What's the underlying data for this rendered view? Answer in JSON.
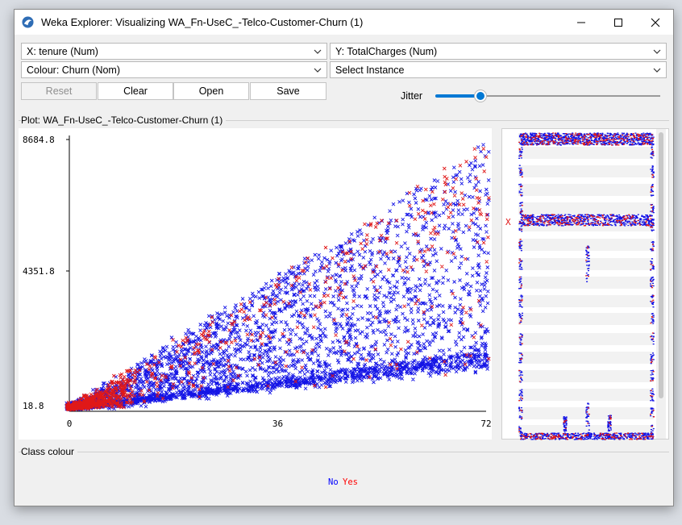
{
  "window": {
    "title": "Weka Explorer: Visualizing WA_Fn-UseC_-Telco-Customer-Churn (1)"
  },
  "controls": {
    "x_select": "X: tenure (Num)",
    "y_select": "Y: TotalCharges (Num)",
    "colour_select": "Colour: Churn (Nom)",
    "instance_select": "Select Instance",
    "reset_label": "Reset",
    "clear_label": "Clear",
    "open_label": "Open",
    "save_label": "Save",
    "jitter_label": "Jitter",
    "jitter_level": 0.2
  },
  "plot": {
    "group_label": "Plot: WA_Fn-UseC_-Telco-Customer-Churn (1)"
  },
  "class_colour": {
    "label": "Class colour",
    "entries": [
      {
        "name": "No",
        "color": "#0000ff"
      },
      {
        "name": "Yes",
        "color": "#ff0000"
      }
    ]
  },
  "side_panel": {
    "selected_marker": "X"
  },
  "colors": {
    "no": "#1414e6",
    "yes": "#e01818",
    "accent": "#0078d4"
  },
  "chart_data": {
    "type": "scatter",
    "x_axis": {
      "attribute": "tenure",
      "min": 0,
      "max": 72,
      "ticks": [
        "0",
        "36",
        "72"
      ]
    },
    "y_axis": {
      "attribute": "TotalCharges",
      "min": 18.8,
      "max": 8684.8,
      "ticks": [
        "18.8",
        "4351.8",
        "8684.8"
      ]
    },
    "series": [
      {
        "name": "No",
        "color": "#0000ff",
        "density": "dominant, spread across full triangle and bottom band"
      },
      {
        "name": "Yes",
        "color": "#ff0000",
        "density": "concentrated at low tenure and upper edge of triangle"
      }
    ]
  }
}
